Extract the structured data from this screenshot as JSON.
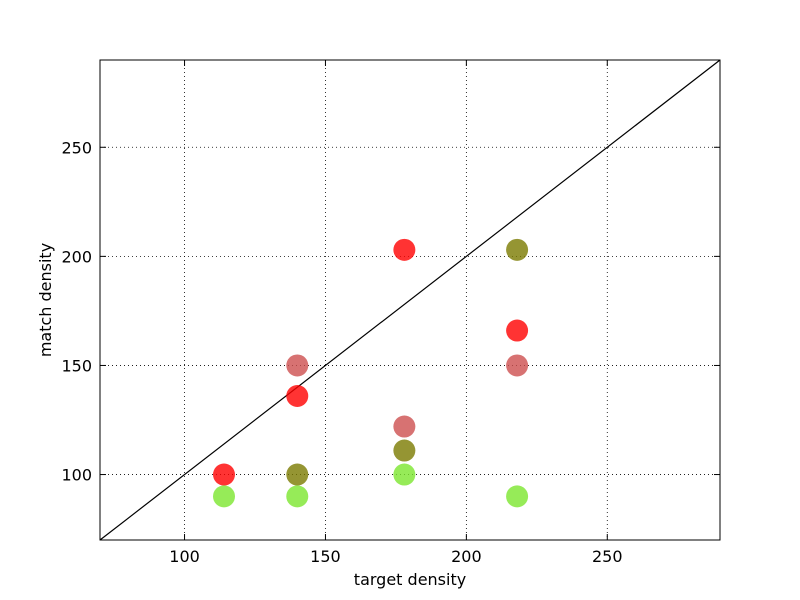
{
  "chart_data": {
    "type": "scatter",
    "title": "",
    "xlabel": "target density",
    "ylabel": "match density",
    "xlim": [
      70,
      290
    ],
    "ylim": [
      70,
      290
    ],
    "xticks": [
      100,
      150,
      200,
      250
    ],
    "yticks": [
      100,
      150,
      200,
      250
    ],
    "grid": true,
    "reference_line": {
      "from": [
        70,
        70
      ],
      "to": [
        290,
        290
      ],
      "color": "#000000"
    },
    "series": [
      {
        "color": "#ff0000",
        "opacity": 0.8,
        "points": [
          [
            114,
            100
          ],
          [
            140,
            136
          ],
          [
            178,
            203
          ],
          [
            218,
            166
          ]
        ]
      },
      {
        "color": "#cd4f4f",
        "opacity": 0.8,
        "points": [
          [
            140,
            150
          ],
          [
            178,
            122
          ],
          [
            218,
            150
          ]
        ]
      },
      {
        "color": "#7a7a00",
        "opacity": 0.8,
        "points": [
          [
            140,
            100
          ],
          [
            178,
            111
          ],
          [
            218,
            203
          ]
        ]
      },
      {
        "color": "#7ce62e",
        "opacity": 0.8,
        "points": [
          [
            114,
            90
          ],
          [
            140,
            90
          ],
          [
            178,
            100
          ],
          [
            218,
            90
          ]
        ]
      }
    ]
  }
}
